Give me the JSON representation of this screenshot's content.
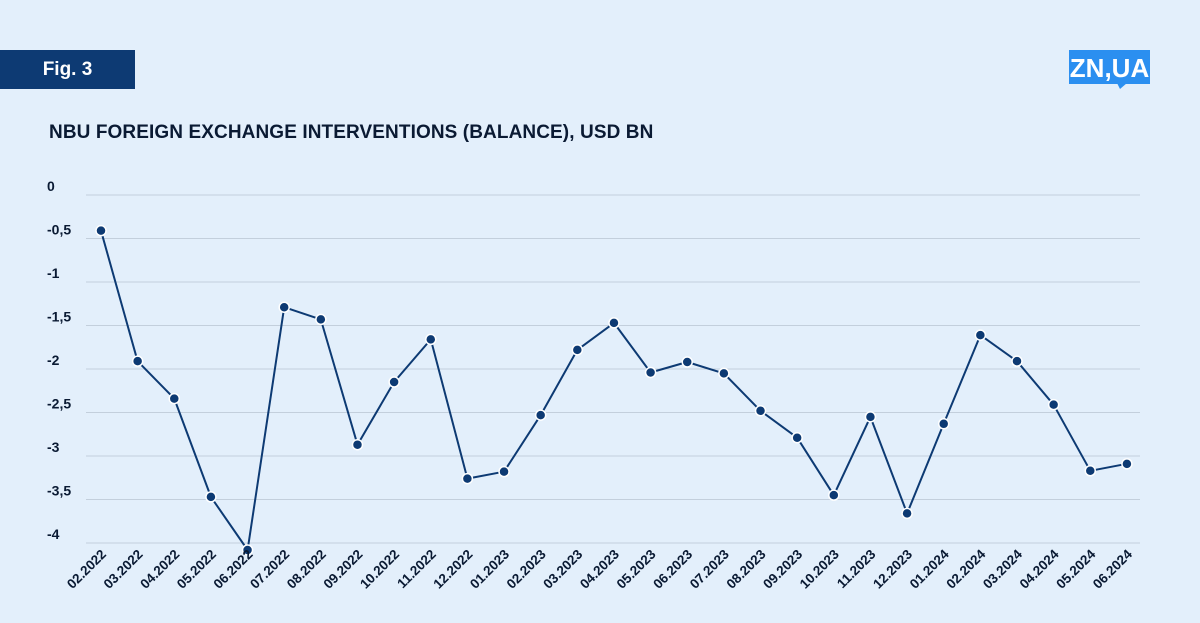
{
  "figure_label": "Fig. 3",
  "logo_text": "ZN,UA",
  "colors": {
    "background": "#e3effb",
    "badge": "#0d3a73",
    "line": "#0d3a73",
    "logo": "#2b8ff0",
    "grid": "#c3cfdc"
  },
  "chart_data": {
    "type": "line",
    "title": "NBU FOREIGN EXCHANGE INTERVENTIONS (BALANCE), USD BN",
    "xlabel": "",
    "ylabel": "",
    "ylim": [
      -4,
      0
    ],
    "yticks": [
      {
        "value": 0,
        "label": "0"
      },
      {
        "value": -0.5,
        "label": "-0,5"
      },
      {
        "value": -1,
        "label": "-1"
      },
      {
        "value": -1.5,
        "label": "-1,5"
      },
      {
        "value": -2,
        "label": "-2"
      },
      {
        "value": -2.5,
        "label": "-2,5"
      },
      {
        "value": -3,
        "label": "-3"
      },
      {
        "value": -3.5,
        "label": "-3,5"
      },
      {
        "value": -4,
        "label": "-4"
      }
    ],
    "grid": true,
    "categories": [
      "02.2022",
      "03.2022",
      "04.2022",
      "05.2022",
      "06.2022",
      "07.2022",
      "08.2022",
      "09.2022",
      "10.2022",
      "11.2022",
      "12.2022",
      "01.2023",
      "02.2023",
      "03.2023",
      "04.2023",
      "05.2023",
      "06.2023",
      "07.2023",
      "08.2023",
      "09.2023",
      "10.2023",
      "11.2023",
      "12.2023",
      "01.2024",
      "02.2024",
      "03.2024",
      "04.2024",
      "05.2024",
      "06.2024"
    ],
    "series": [
      {
        "values": [
          -0.41,
          -1.91,
          -2.34,
          -3.47,
          -4.08,
          -1.29,
          -1.43,
          -2.87,
          -2.15,
          -1.66,
          -3.26,
          -3.18,
          -2.53,
          -1.78,
          -1.47,
          -2.04,
          -1.92,
          -2.05,
          -2.48,
          -2.79,
          -3.45,
          -2.55,
          -3.66,
          -2.63,
          -1.61,
          -1.91,
          -2.41,
          -3.17,
          -3.09
        ]
      }
    ]
  }
}
